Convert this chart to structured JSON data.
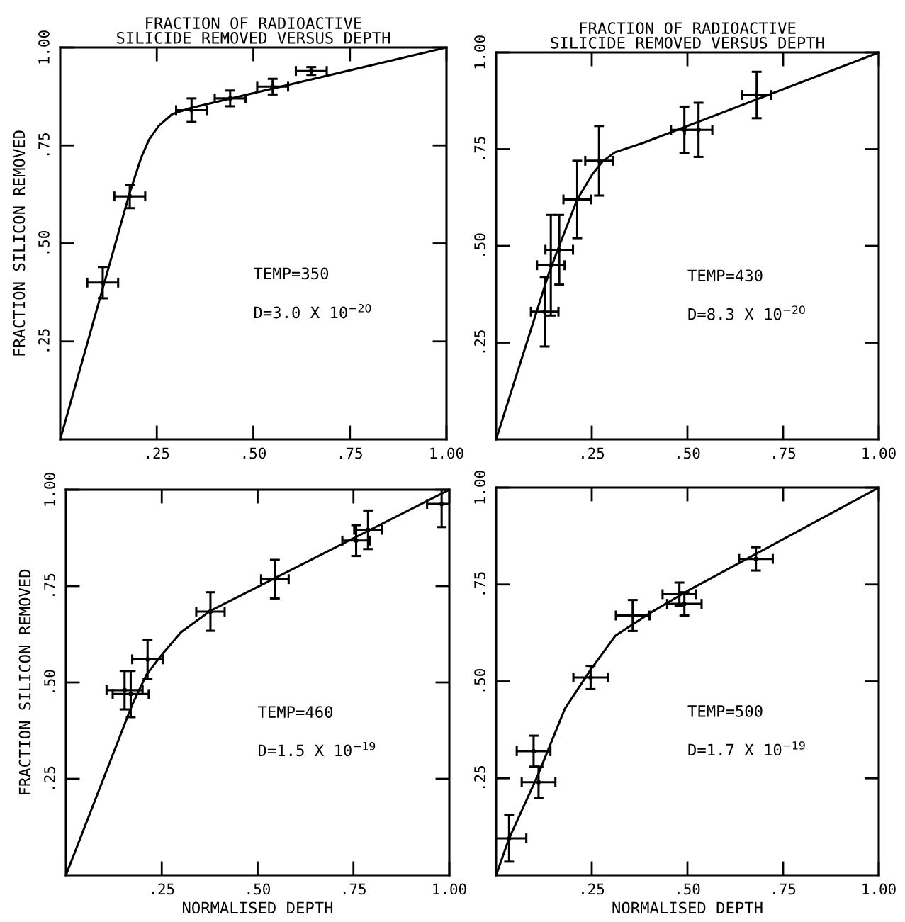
{
  "chart_data": [
    {
      "type": "scatter",
      "title": "FRACTION OF RADIOACTIVE\nSILICIDE REMOVED VERSUS DEPTH",
      "ylabel": "FRACTION SILICON REMOVED",
      "annotations": [
        "TEMP=350",
        "D=3.0 X 10$^{−20}$"
      ],
      "xlim": [
        0,
        1
      ],
      "ylim": [
        0,
        1
      ],
      "xticks": [
        {
          "value": 0.25,
          "label": ".25"
        },
        {
          "value": 0.5,
          "label": ".50"
        },
        {
          "value": 0.75,
          "label": ".75"
        },
        {
          "value": 1.0,
          "label": "1.00"
        }
      ],
      "yticks": [
        {
          "value": 0.25,
          "label": ".25"
        },
        {
          "value": 0.5,
          "label": ".50"
        },
        {
          "value": 0.75,
          "label": ".75"
        },
        {
          "value": 1.0,
          "label": "1.00"
        }
      ],
      "series": [
        {
          "marker": "circle",
          "color": "#000000",
          "x": [
            0.11,
            0.18,
            0.34,
            0.44,
            0.55,
            0.65
          ],
          "values": [
            0.4,
            0.62,
            0.84,
            0.87,
            0.9,
            0.94
          ],
          "errors": [
            0.04,
            0.03,
            0.03,
            0.02,
            0.02,
            0.01
          ],
          "xerrors": [
            0.04,
            0.04,
            0.04,
            0.04,
            0.04,
            0.04
          ]
        },
        {
          "type": "line",
          "color": "#000000",
          "x": [
            0,
            0.1,
            0.18,
            0.21,
            0.23,
            0.255,
            0.29,
            0.335,
            1.0
          ],
          "values": [
            0,
            0.35,
            0.63,
            0.72,
            0.765,
            0.8,
            0.83,
            0.845,
            1.0
          ]
        }
      ]
    },
    {
      "type": "scatter",
      "title": "FRACTION OF RADIOACTIVE\nSILICIDE REMOVED VERSUS DEPTH",
      "annotations": [
        "TEMP=430",
        "D=8.3 X 10$^{−20}$"
      ],
      "xlim": [
        0,
        1
      ],
      "ylim": [
        0,
        1
      ],
      "xticks": [
        {
          "value": 0.25,
          "label": ".25"
        },
        {
          "value": 0.5,
          "label": ".50"
        },
        {
          "value": 0.75,
          "label": ".75"
        },
        {
          "value": 1.0,
          "label": "1.00"
        }
      ],
      "yticks": [
        {
          "value": 0.25,
          "label": ".25"
        },
        {
          "value": 0.5,
          "label": ".50"
        },
        {
          "value": 0.75,
          "label": ".75"
        },
        {
          "value": 1.0,
          "label": "1.00"
        }
      ],
      "series": [
        {
          "marker": "circle",
          "color": "#000000",
          "x": [
            0.127,
            0.143,
            0.165,
            0.212,
            0.269,
            0.492,
            0.529,
            0.681
          ],
          "values": [
            0.33,
            0.45,
            0.49,
            0.62,
            0.72,
            0.8,
            0.8,
            0.89
          ],
          "errors": [
            0.09,
            0.13,
            0.09,
            0.1,
            0.09,
            0.06,
            0.07,
            0.06
          ],
          "xerrors": [
            0.036,
            0.036,
            0.036,
            0.036,
            0.036,
            0.035,
            0.036,
            0.038
          ]
        },
        {
          "type": "line",
          "color": "#000000",
          "x": [
            0,
            0.138,
            0.165,
            0.212,
            0.252,
            0.28,
            0.311,
            0.384,
            1.0
          ],
          "values": [
            0,
            0.43,
            0.5,
            0.62,
            0.686,
            0.72,
            0.742,
            0.766,
            1.0
          ]
        }
      ]
    },
    {
      "type": "scatter",
      "xlabel": "NORMALISED DEPTH",
      "ylabel": "FRACTION SILICON REMOVED",
      "annotations": [
        "TEMP=460",
        "D=1.5 X 10$^{−19}$"
      ],
      "xlim": [
        0,
        1
      ],
      "ylim": [
        0,
        1
      ],
      "xticks": [
        {
          "value": 0.25,
          "label": ".25"
        },
        {
          "value": 0.5,
          "label": ".50"
        },
        {
          "value": 0.75,
          "label": ".75"
        },
        {
          "value": 1.0,
          "label": "1.00"
        }
      ],
      "yticks": [
        {
          "value": 0.25,
          "label": ".25"
        },
        {
          "value": 0.5,
          "label": ".50"
        },
        {
          "value": 0.75,
          "label": ".75"
        },
        {
          "value": 1.0,
          "label": "1.00"
        }
      ],
      "series": [
        {
          "marker": "circle",
          "color": "#000000",
          "x": [
            0.153,
            0.169,
            0.213,
            0.377,
            0.545,
            0.757,
            0.788,
            0.98
          ],
          "values": [
            0.48,
            0.47,
            0.56,
            0.684,
            0.768,
            0.868,
            0.896,
            0.963
          ],
          "errors": [
            0.05,
            0.06,
            0.05,
            0.05,
            0.05,
            0.04,
            0.05,
            0.06
          ],
          "xerrors": [
            0.047,
            0.047,
            0.04,
            0.037,
            0.036,
            0.036,
            0.036,
            0.038
          ]
        },
        {
          "type": "line",
          "color": "#000000",
          "x": [
            0,
            0.172,
            0.21,
            0.247,
            0.3,
            0.377,
            1.0
          ],
          "values": [
            0,
            0.44,
            0.52,
            0.568,
            0.63,
            0.686,
            1.0
          ]
        }
      ]
    },
    {
      "type": "scatter",
      "xlabel": "NORMALISED DEPTH",
      "annotations": [
        "TEMP=500",
        "D=1.7 X 10$^{−19}$"
      ],
      "xlim": [
        0,
        1
      ],
      "ylim": [
        0,
        1
      ],
      "xticks": [
        {
          "value": 0.25,
          "label": ".25"
        },
        {
          "value": 0.5,
          "label": ".50"
        },
        {
          "value": 0.75,
          "label": ".75"
        },
        {
          "value": 1.0,
          "label": "1.00"
        }
      ],
      "yticks": [
        {
          "value": 0.25,
          "label": ".25"
        },
        {
          "value": 0.5,
          "label": ".50"
        },
        {
          "value": 0.75,
          "label": ".75"
        },
        {
          "value": 1.0,
          "label": "1.00"
        }
      ],
      "series": [
        {
          "marker": "circle",
          "color": "#000000",
          "x": [
            0.034,
            0.098,
            0.111,
            0.247,
            0.357,
            0.479,
            0.492,
            0.679
          ],
          "values": [
            0.095,
            0.32,
            0.24,
            0.51,
            0.67,
            0.725,
            0.7,
            0.816
          ],
          "errors": [
            0.06,
            0.04,
            0.04,
            0.03,
            0.04,
            0.03,
            0.03,
            0.03
          ],
          "xerrors": [
            0.045,
            0.044,
            0.044,
            0.045,
            0.044,
            0.044,
            0.045,
            0.044
          ]
        },
        {
          "type": "line",
          "color": "#000000",
          "x": [
            0,
            0.034,
            0.11,
            0.18,
            0.247,
            0.312,
            0.405,
            0.503,
            1.0
          ],
          "values": [
            0,
            0.095,
            0.26,
            0.43,
            0.53,
            0.618,
            0.678,
            0.735,
            1.0
          ]
        }
      ]
    }
  ]
}
